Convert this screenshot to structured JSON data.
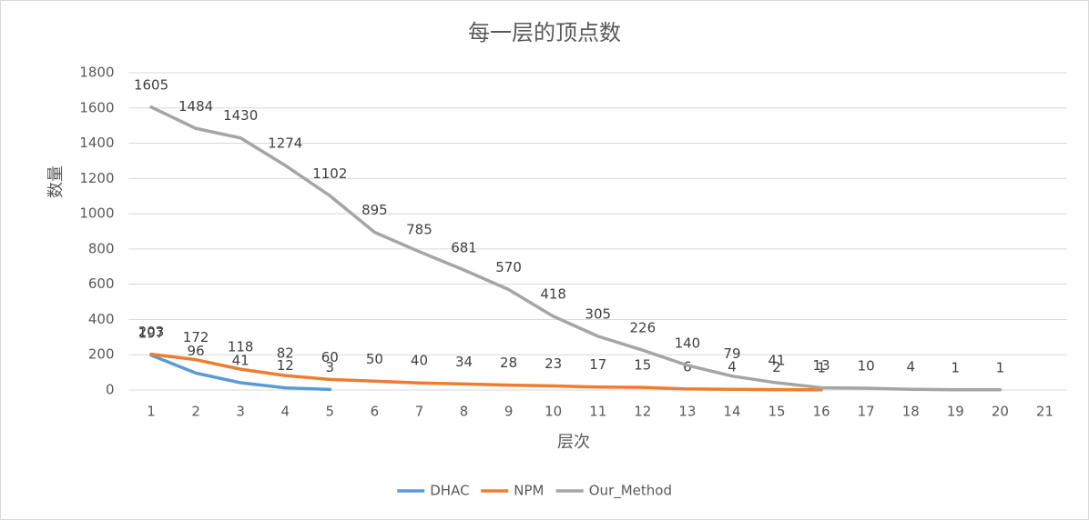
{
  "chart_data": {
    "type": "line",
    "title": "每一层的顶点数",
    "x_label": "层次",
    "y_label": "数量",
    "categories": [
      "1",
      "2",
      "3",
      "4",
      "5",
      "6",
      "7",
      "8",
      "9",
      "10",
      "11",
      "12",
      "13",
      "14",
      "15",
      "16",
      "17",
      "18",
      "19",
      "20",
      "21"
    ],
    "series": [
      {
        "name": "DHAC",
        "color": "#5b9bd5",
        "values": [
          197,
          96,
          41,
          12,
          3,
          null,
          null,
          null,
          null,
          null,
          null,
          null,
          null,
          null,
          null,
          null,
          null,
          null,
          null,
          null,
          null
        ]
      },
      {
        "name": "NPM",
        "color": "#ed7d31",
        "values": [
          203,
          172,
          118,
          82,
          60,
          50,
          40,
          34,
          28,
          23,
          17,
          15,
          6,
          4,
          2,
          1,
          null,
          null,
          null,
          null,
          null
        ]
      },
      {
        "name": "Our_Method",
        "color": "#a5a5a5",
        "values": [
          1605,
          1484,
          1430,
          1274,
          1102,
          895,
          785,
          681,
          570,
          418,
          305,
          226,
          140,
          79,
          41,
          13,
          10,
          4,
          1,
          1,
          null
        ]
      }
    ],
    "ylim": [
      0,
      1800
    ],
    "yticks": [
      0,
      200,
      400,
      600,
      800,
      1000,
      1200,
      1400,
      1600,
      1800
    ],
    "grid": true,
    "legend": "bottom"
  }
}
